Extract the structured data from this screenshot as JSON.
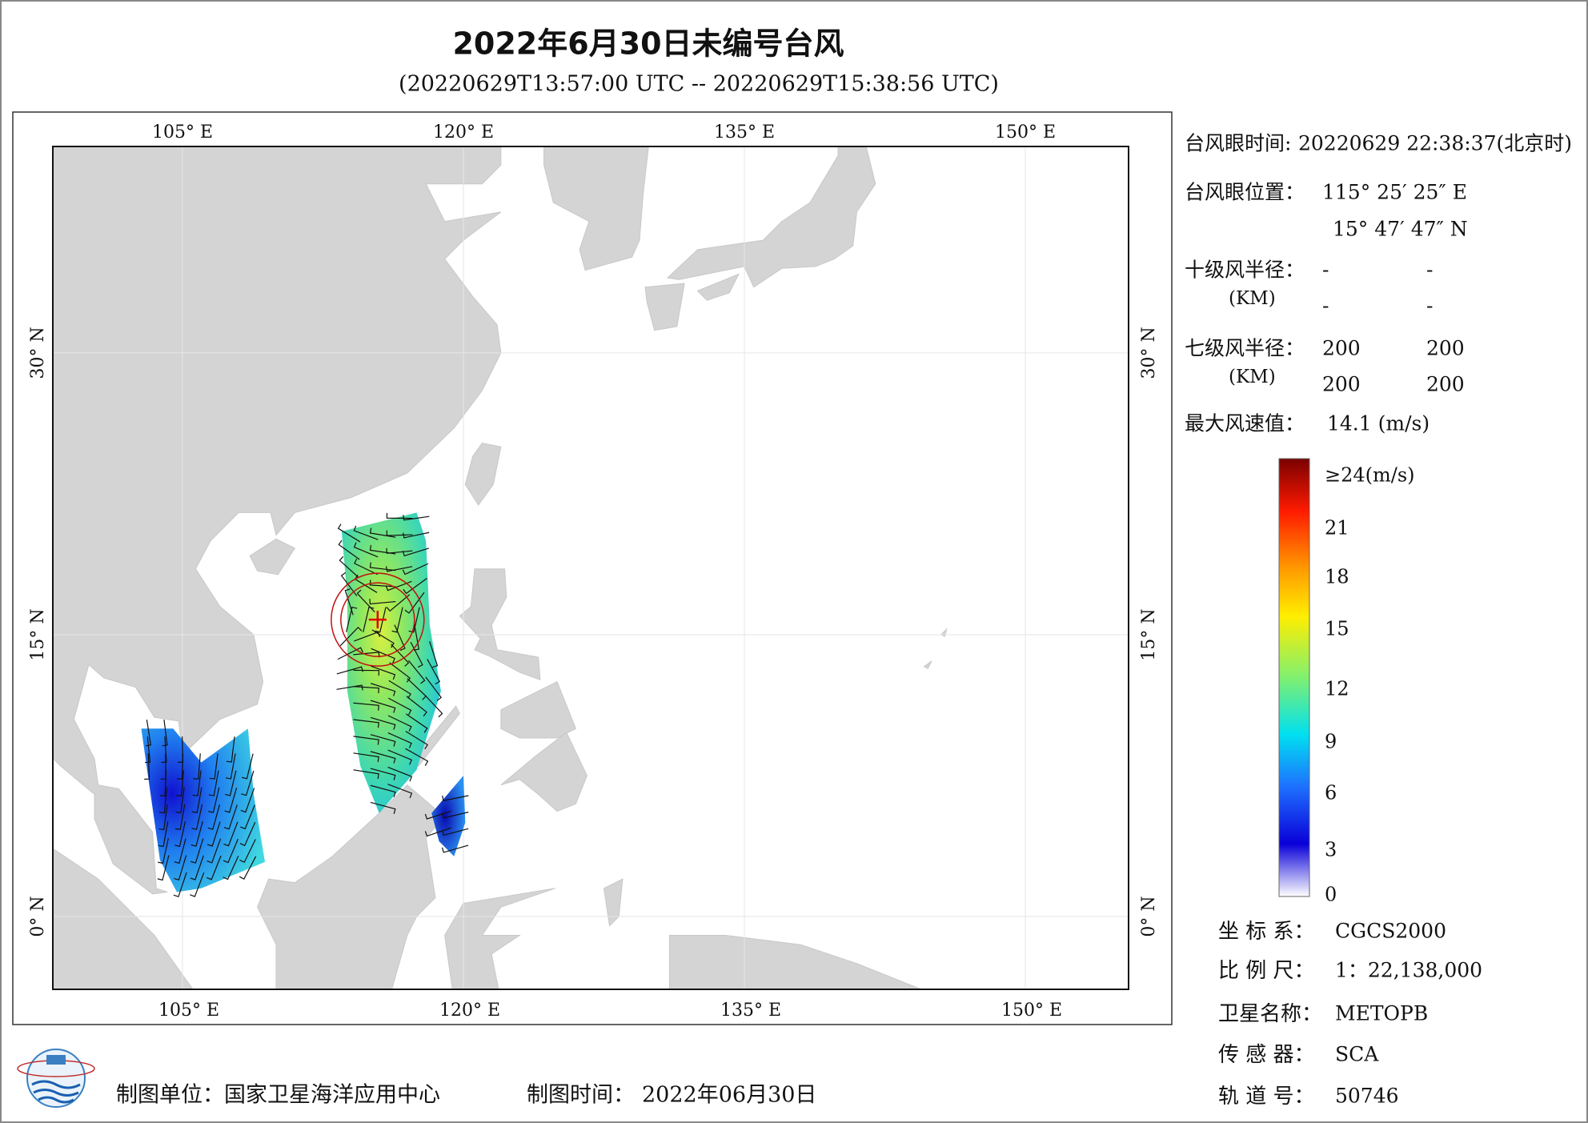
{
  "title": "2022年6月30日未编号台风",
  "subtitle": "(20220629T13:57:00 UTC -- 20220629T15:38:56 UTC)",
  "map": {
    "lon_labels": [
      "105° E",
      "120° E",
      "135° E",
      "150° E"
    ],
    "lat_labels": [
      "30° N",
      "15° N",
      "0° N"
    ]
  },
  "info": {
    "eye_time": {
      "label": "台风眼时间:",
      "value": "20220629 22:38:37(北京时)"
    },
    "eye_position": {
      "label": "台风眼位置：",
      "lon": "115° 25′ 25″ E",
      "lat": "15° 47′ 47″ N"
    },
    "radius10": {
      "label": "十级风半径：",
      "unit": "(KM)",
      "row1": [
        "-",
        "-"
      ],
      "row2": [
        "-",
        "-"
      ]
    },
    "radius7": {
      "label": "七级风半径：",
      "unit": "(KM)",
      "row1": [
        "200",
        "200"
      ],
      "row2": [
        "200",
        "200"
      ]
    },
    "max_wind": {
      "label": "最大风速值：",
      "value": "14.1 (m/s)"
    }
  },
  "colorbar": {
    "labels": [
      "≥24(m/s)",
      "21",
      "18",
      "15",
      "12",
      "9",
      "6",
      "3",
      "0"
    ]
  },
  "meta": [
    {
      "label": "坐 标 系：",
      "value": "CGCS2000"
    },
    {
      "label": "比 例 尺：",
      "value": "1：22,138,000"
    },
    {
      "label": "卫星名称：",
      "value": "METOPB"
    },
    {
      "label": "传 感 器：",
      "value": "SCA"
    },
    {
      "label": "轨 道 号：",
      "value": "50746"
    }
  ],
  "footer": {
    "unit": "制图单位：国家卫星海洋应用中心",
    "time_label": "制图时间：",
    "time": "2022年06月30日"
  }
}
